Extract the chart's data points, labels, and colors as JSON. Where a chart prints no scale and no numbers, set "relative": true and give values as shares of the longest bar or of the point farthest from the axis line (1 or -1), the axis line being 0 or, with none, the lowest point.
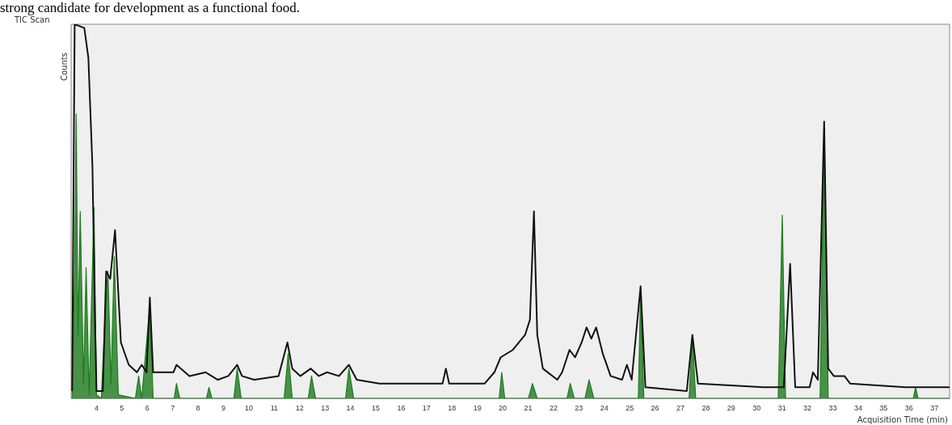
{
  "chart_data": {
    "type": "line",
    "title": "TIC Scan",
    "xlabel": "Acquisition Time (min)",
    "ylabel": "Counts",
    "relative": true,
    "annotations": [
      "strong candidate for development as a functional food."
    ],
    "xlim": [
      3,
      37.6
    ],
    "xticks": [
      4,
      5,
      6,
      7,
      8,
      9,
      10,
      11,
      12,
      13,
      14,
      15,
      16,
      17,
      18,
      19,
      20,
      21,
      22,
      23,
      24,
      25,
      26,
      27,
      28,
      29,
      30,
      31,
      32,
      33,
      34,
      35,
      36,
      37
    ],
    "grid": false,
    "legend": false,
    "series": [
      {
        "type": "area",
        "color": "#1e7b1e",
        "x": [
          3.04,
          3.14,
          3.2,
          3.27,
          3.36,
          3.49,
          3.59,
          3.71,
          3.9,
          4.0,
          4.19,
          4.35,
          4.45,
          4.57,
          4.7,
          4.86,
          5.53,
          5.66,
          5.78,
          6.1,
          6.23,
          7.06,
          7.15,
          7.28,
          8.33,
          8.43,
          8.55,
          9.41,
          9.54,
          9.7,
          11.39,
          11.55,
          11.71,
          12.34,
          12.47,
          12.63,
          13.81,
          13.94,
          14.13,
          19.86,
          19.96,
          20.08,
          21.01,
          21.17,
          21.36,
          22.53,
          22.66,
          22.82,
          23.24,
          23.4,
          23.59,
          25.34,
          25.43,
          25.56,
          27.34,
          27.47,
          27.6,
          30.85,
          31.01,
          31.14,
          32.5,
          32.66,
          32.82,
          36.17,
          36.26,
          36.36,
          37.6
        ],
        "values": [
          0,
          0.35,
          0.76,
          0.17,
          0.5,
          0.04,
          0.35,
          0.01,
          0.51,
          0.01,
          0,
          0.24,
          0.34,
          0.04,
          0.38,
          0.01,
          0,
          0.06,
          0,
          0.25,
          0,
          0,
          0.04,
          0,
          0,
          0.03,
          0,
          0,
          0.08,
          0,
          0,
          0.12,
          0,
          0,
          0.06,
          0,
          0,
          0.08,
          0,
          0,
          0.07,
          0,
          0,
          0.04,
          0,
          0,
          0.04,
          0,
          0,
          0.05,
          0,
          0,
          0.29,
          0,
          0,
          0.17,
          0,
          0,
          0.49,
          0,
          0,
          0.72,
          0,
          0,
          0.03,
          0,
          0
        ]
      },
      {
        "type": "line",
        "color": "#111111",
        "x": [
          3.04,
          3.14,
          3.52,
          3.68,
          3.84,
          3.94,
          4.0,
          4.25,
          4.38,
          4.54,
          4.73,
          4.96,
          5.27,
          5.59,
          5.78,
          5.97,
          6.1,
          6.23,
          7.03,
          7.15,
          7.66,
          8.3,
          8.78,
          9.19,
          9.54,
          9.73,
          10.21,
          11.17,
          11.52,
          11.71,
          12.03,
          12.44,
          12.76,
          13.08,
          13.55,
          13.94,
          14.25,
          15.15,
          16.74,
          17.63,
          17.76,
          17.89,
          19.29,
          19.67,
          19.92,
          20.4,
          20.88,
          21.07,
          21.23,
          21.36,
          21.58,
          22.15,
          22.34,
          22.63,
          22.85,
          23.11,
          23.3,
          23.49,
          23.68,
          23.94,
          24.25,
          24.7,
          24.89,
          25.08,
          25.43,
          25.62,
          27.25,
          27.47,
          27.69,
          30.27,
          31.07,
          31.32,
          31.52,
          32.09,
          32.22,
          32.41,
          32.66,
          32.82,
          33.04,
          33.46,
          33.68,
          35.85,
          37.6
        ],
        "values": [
          0.02,
          1.0,
          0.99,
          0.91,
          0.62,
          0.21,
          0.02,
          0.02,
          0.34,
          0.32,
          0.45,
          0.15,
          0.09,
          0.07,
          0.09,
          0.07,
          0.27,
          0.07,
          0.07,
          0.09,
          0.06,
          0.07,
          0.05,
          0.06,
          0.09,
          0.06,
          0.05,
          0.06,
          0.15,
          0.08,
          0.06,
          0.08,
          0.06,
          0.07,
          0.06,
          0.09,
          0.05,
          0.04,
          0.04,
          0.04,
          0.08,
          0.04,
          0.04,
          0.07,
          0.11,
          0.13,
          0.17,
          0.21,
          0.5,
          0.17,
          0.08,
          0.05,
          0.07,
          0.13,
          0.11,
          0.15,
          0.19,
          0.16,
          0.19,
          0.12,
          0.06,
          0.05,
          0.09,
          0.05,
          0.3,
          0.03,
          0.02,
          0.17,
          0.04,
          0.03,
          0.03,
          0.36,
          0.03,
          0.03,
          0.07,
          0.05,
          0.74,
          0.08,
          0.06,
          0.06,
          0.04,
          0.03,
          0.03
        ]
      }
    ]
  }
}
